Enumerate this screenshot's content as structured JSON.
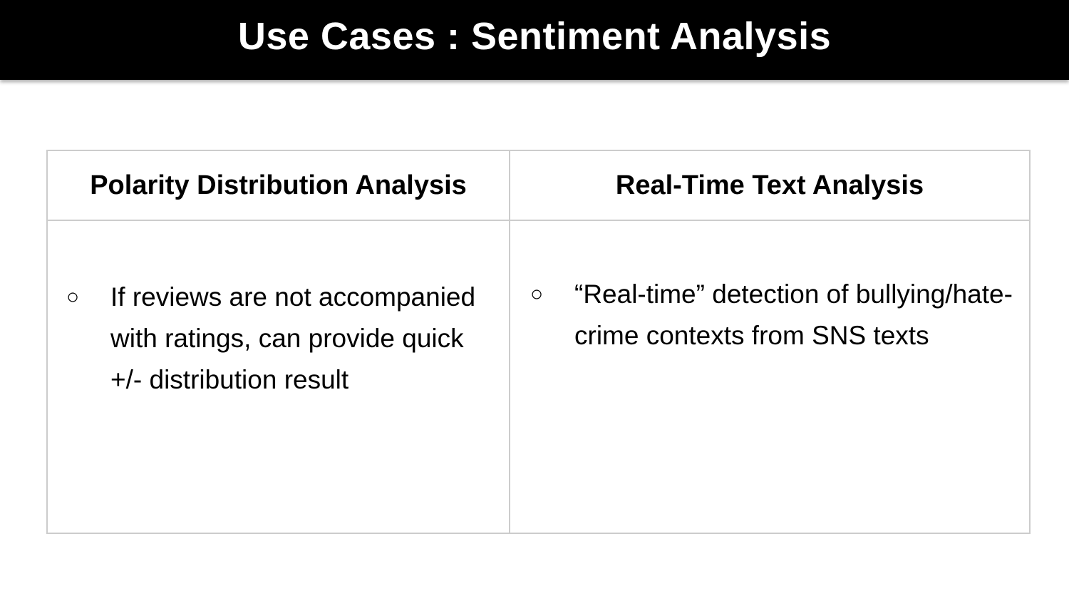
{
  "slide": {
    "title": "Use Cases : Sentiment Analysis"
  },
  "table": {
    "headers": [
      "Polarity Distribution Analysis",
      "Real-Time Text Analysis"
    ],
    "cells": [
      {
        "bullet_symbol": "○",
        "text": "If reviews are not accompanied with ratings, can provide quick +/- distribution result"
      },
      {
        "bullet_symbol": "○",
        "text": "“Real-time” detection of bullying/hate-crime contexts from SNS texts"
      }
    ]
  },
  "colors": {
    "title_bar": "#000000",
    "title_text": "#ffffff",
    "grid_border": "#cccccc",
    "background": "#ffffff"
  }
}
